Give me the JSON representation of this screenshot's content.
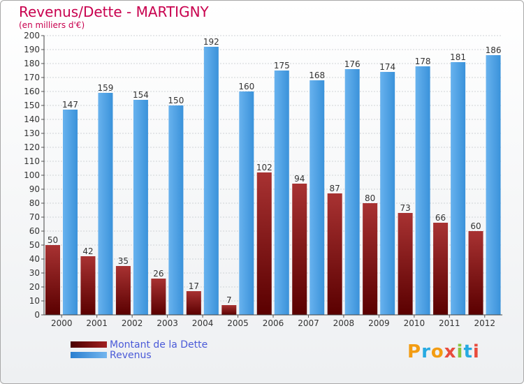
{
  "chart_data": {
    "type": "bar",
    "title": "Revenus/Dette - MARTIGNY",
    "subtitle": "(en milliers d'€)",
    "categories": [
      "2000",
      "2001",
      "2002",
      "2003",
      "2004",
      "2005",
      "2006",
      "2007",
      "2008",
      "2009",
      "2010",
      "2011",
      "2012"
    ],
    "series": [
      {
        "name": "Montant de la Dette",
        "color": "#8b1a1a",
        "values": [
          50,
          42,
          35,
          26,
          17,
          7,
          102,
          94,
          87,
          80,
          73,
          66,
          60
        ]
      },
      {
        "name": "Revenus",
        "color": "#3d99e0",
        "values": [
          147,
          159,
          154,
          150,
          192,
          160,
          175,
          168,
          176,
          174,
          178,
          181,
          186
        ]
      }
    ],
    "ylim": [
      0,
      200
    ],
    "ytick_step": 10,
    "grid": true,
    "legend_position": "bottom-left"
  },
  "logo": {
    "text": "Proxiti",
    "colors": [
      "#f39c12",
      "#27aae1",
      "#8bc53f",
      "#e84c3d"
    ]
  }
}
